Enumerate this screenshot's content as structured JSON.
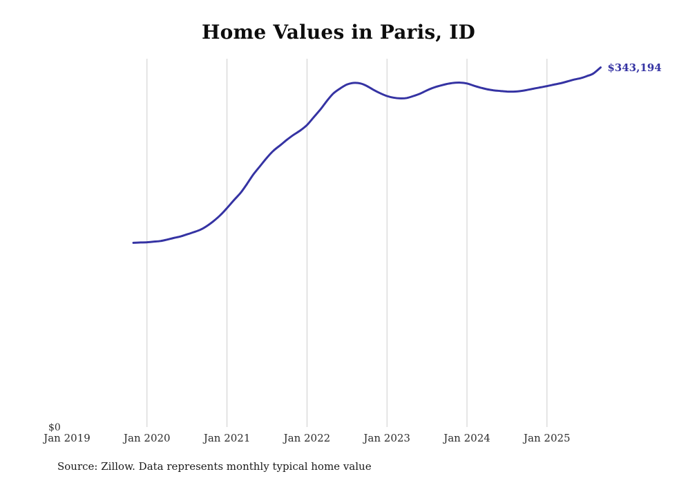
{
  "chart_data": {
    "type": "line",
    "title": "Home Values in Paris, ID",
    "source": "Source: Zillow. Data represents monthly typical home value",
    "end_label": "$343,194",
    "end_value": 343194,
    "line_color": "#3533a3",
    "grid_color": "#cccccc",
    "ylabel": "",
    "xlabel": "",
    "y_axis": {
      "min_label": "$0",
      "min": 0,
      "max": 351500
    },
    "x_ticks": [
      {
        "label": "Jan 2019",
        "year": 2019
      },
      {
        "label": "Jan 2020",
        "year": 2020
      },
      {
        "label": "Jan 2021",
        "year": 2021
      },
      {
        "label": "Jan 2022",
        "year": 2022
      },
      {
        "label": "Jan 2023",
        "year": 2023
      },
      {
        "label": "Jan 2024",
        "year": 2024
      },
      {
        "label": "Jan 2025",
        "year": 2025
      }
    ],
    "gridline_years": [
      2020,
      2021,
      2022,
      2023,
      2024,
      2025
    ],
    "series": [
      {
        "name": "Typical home value",
        "points": [
          [
            2019.83,
            176500
          ],
          [
            2019.92,
            176800
          ],
          [
            2020.0,
            177000
          ],
          [
            2020.08,
            177500
          ],
          [
            2020.17,
            178200
          ],
          [
            2020.25,
            179500
          ],
          [
            2020.33,
            181000
          ],
          [
            2020.42,
            182500
          ],
          [
            2020.5,
            184500
          ],
          [
            2020.58,
            186500
          ],
          [
            2020.67,
            189000
          ],
          [
            2020.75,
            192500
          ],
          [
            2020.83,
            197000
          ],
          [
            2020.92,
            203000
          ],
          [
            2021.0,
            209500
          ],
          [
            2021.08,
            216500
          ],
          [
            2021.17,
            224000
          ],
          [
            2021.25,
            232500
          ],
          [
            2021.33,
            241500
          ],
          [
            2021.42,
            250000
          ],
          [
            2021.5,
            257500
          ],
          [
            2021.58,
            264000
          ],
          [
            2021.67,
            269500
          ],
          [
            2021.75,
            274500
          ],
          [
            2021.83,
            279000
          ],
          [
            2021.92,
            283500
          ],
          [
            2022.0,
            288500
          ],
          [
            2022.08,
            295500
          ],
          [
            2022.17,
            303500
          ],
          [
            2022.25,
            311500
          ],
          [
            2022.33,
            318500
          ],
          [
            2022.42,
            323500
          ],
          [
            2022.5,
            327000
          ],
          [
            2022.58,
            328500
          ],
          [
            2022.67,
            328000
          ],
          [
            2022.75,
            325500
          ],
          [
            2022.83,
            322000
          ],
          [
            2022.92,
            318500
          ],
          [
            2023.0,
            316000
          ],
          [
            2023.08,
            314500
          ],
          [
            2023.17,
            313800
          ],
          [
            2023.25,
            314200
          ],
          [
            2023.33,
            316000
          ],
          [
            2023.42,
            318500
          ],
          [
            2023.5,
            321500
          ],
          [
            2023.58,
            324000
          ],
          [
            2023.67,
            326000
          ],
          [
            2023.75,
            327500
          ],
          [
            2023.83,
            328500
          ],
          [
            2023.92,
            328800
          ],
          [
            2024.0,
            328000
          ],
          [
            2024.08,
            326000
          ],
          [
            2024.17,
            324000
          ],
          [
            2024.25,
            322500
          ],
          [
            2024.33,
            321500
          ],
          [
            2024.42,
            320800
          ],
          [
            2024.5,
            320300
          ],
          [
            2024.58,
            320200
          ],
          [
            2024.67,
            320800
          ],
          [
            2024.75,
            321800
          ],
          [
            2024.83,
            323000
          ],
          [
            2024.92,
            324300
          ],
          [
            2025.0,
            325500
          ],
          [
            2025.08,
            326800
          ],
          [
            2025.17,
            328200
          ],
          [
            2025.25,
            329800
          ],
          [
            2025.33,
            331500
          ],
          [
            2025.42,
            333000
          ],
          [
            2025.5,
            335000
          ],
          [
            2025.58,
            337500
          ],
          [
            2025.67,
            343194
          ]
        ]
      }
    ]
  }
}
